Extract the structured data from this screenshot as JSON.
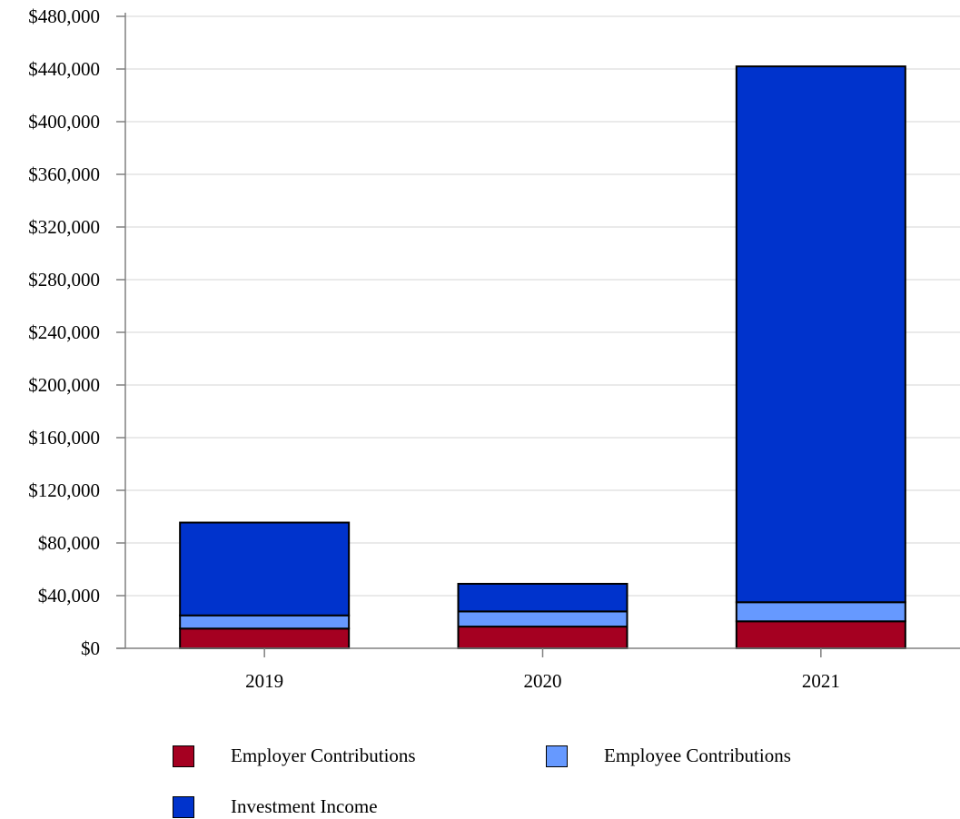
{
  "chart_data": {
    "type": "bar",
    "stacked": true,
    "categories": [
      "2019",
      "2020",
      "2021"
    ],
    "series": [
      {
        "name": "Employer Contributions",
        "values": [
          15000,
          16500,
          20500
        ],
        "color": "#a50021"
      },
      {
        "name": "Employee Contributions",
        "values": [
          10000,
          11500,
          14500
        ],
        "color": "#6699ff"
      },
      {
        "name": "Investment Income",
        "values": [
          70500,
          21000,
          407000
        ],
        "color": "#0033cc"
      }
    ],
    "ylim": [
      0,
      480000
    ],
    "yticks": [
      0,
      40000,
      80000,
      120000,
      160000,
      200000,
      240000,
      280000,
      320000,
      360000,
      400000,
      440000,
      480000
    ],
    "ytick_labels": [
      "$0",
      "$40,000",
      "$80,000",
      "$120,000",
      "$160,000",
      "$200,000",
      "$240,000",
      "$280,000",
      "$320,000",
      "$360,000",
      "$400,000",
      "$440,000",
      "$480,000"
    ],
    "grid": true,
    "legend_position": "bottom"
  }
}
